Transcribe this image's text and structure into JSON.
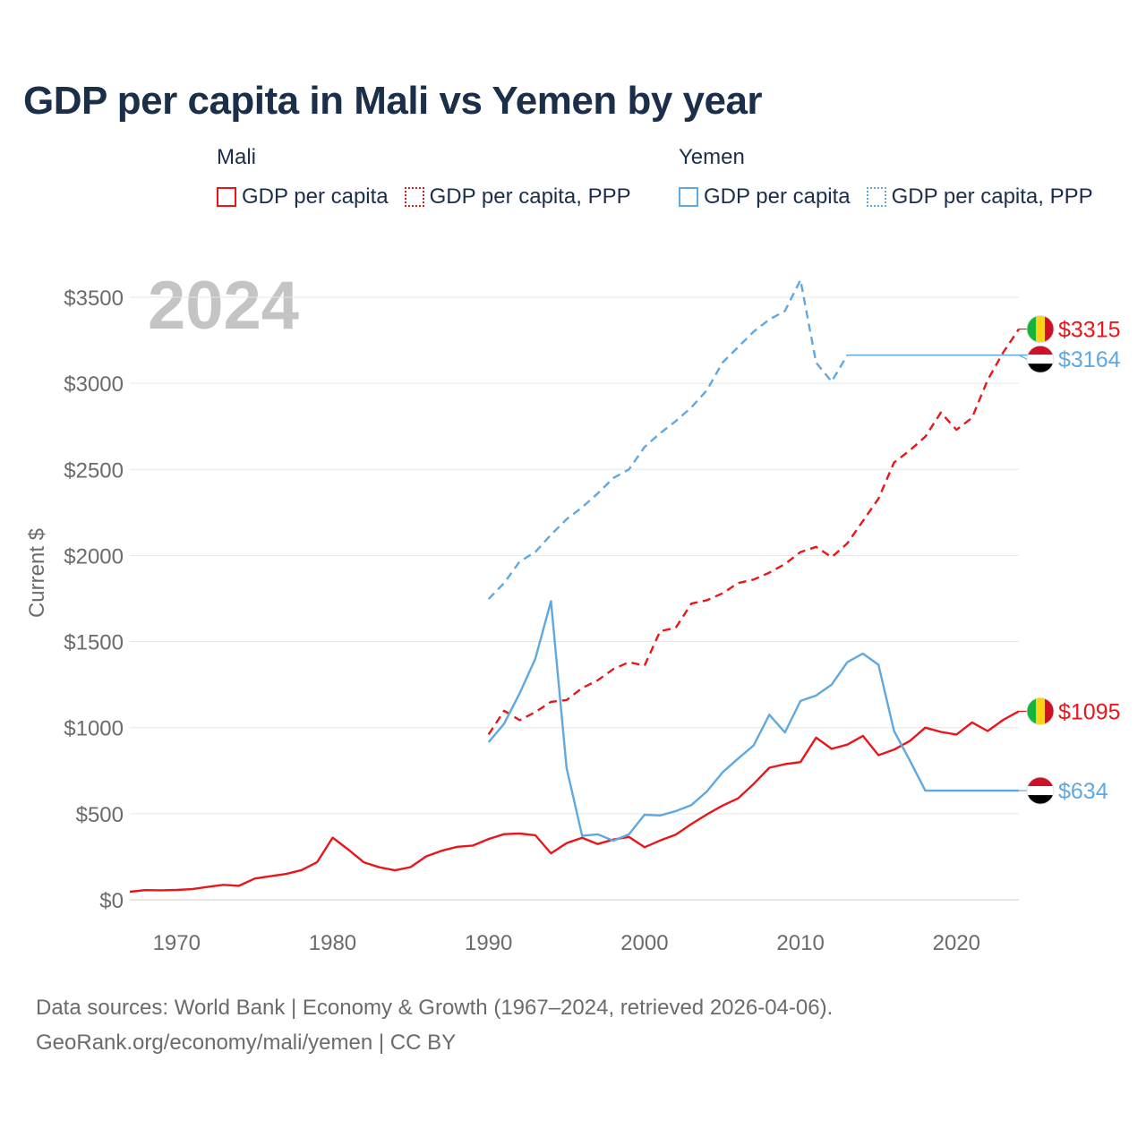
{
  "chart_data": {
    "type": "line",
    "title": "GDP per capita in Mali vs Yemen by year",
    "year_label": "2024",
    "ylabel": "Current $",
    "xlim": [
      1967,
      2024
    ],
    "ylim": [
      0,
      3600
    ],
    "x_ticks": [
      1970,
      1980,
      1990,
      2000,
      2010,
      2020
    ],
    "y_ticks": [
      0,
      500,
      1000,
      1500,
      2000,
      2500,
      3000,
      3500
    ],
    "y_tick_labels": [
      "$0",
      "$500",
      "$1000",
      "$1500",
      "$2000",
      "$2500",
      "$3000",
      "$3500"
    ],
    "legend": {
      "groups": [
        {
          "country": "Mali",
          "color": "#e8161b",
          "items": [
            {
              "label": "GDP per capita",
              "style": "solid"
            },
            {
              "label": "GDP per capita, PPP",
              "style": "dotted"
            }
          ]
        },
        {
          "country": "Yemen",
          "color": "#5fa8e0",
          "items": [
            {
              "label": "GDP per capita",
              "style": "solid"
            },
            {
              "label": "GDP per capita, PPP",
              "style": "dotted"
            }
          ]
        }
      ]
    },
    "series": [
      {
        "name": "Mali GDP per capita",
        "color": "#e8161b",
        "dash": false,
        "x": [
          1967,
          1968,
          1969,
          1970,
          1971,
          1972,
          1973,
          1974,
          1975,
          1976,
          1977,
          1978,
          1979,
          1980,
          1981,
          1982,
          1983,
          1984,
          1985,
          1986,
          1987,
          1988,
          1989,
          1990,
          1991,
          1992,
          1993,
          1994,
          1995,
          1996,
          1997,
          1998,
          1999,
          2000,
          2001,
          2002,
          2003,
          2004,
          2005,
          2006,
          2007,
          2008,
          2009,
          2010,
          2011,
          2012,
          2013,
          2014,
          2015,
          2016,
          2017,
          2018,
          2019,
          2020,
          2021,
          2022,
          2023,
          2024
        ],
        "values": [
          47,
          56,
          55,
          57,
          62,
          75,
          87,
          81,
          123,
          137,
          150,
          172,
          218,
          361,
          292,
          218,
          189,
          171,
          190,
          252,
          285,
          308,
          315,
          353,
          381,
          385,
          375,
          270,
          329,
          360,
          324,
          350,
          365,
          305,
          344,
          378,
          440,
          496,
          547,
          589,
          673,
          767,
          788,
          800,
          942,
          877,
          901,
          952,
          840,
          872,
          922,
          1000,
          975,
          960,
          1030,
          980,
          1045,
          1095
        ]
      },
      {
        "name": "Mali GDP per capita, PPP",
        "color": "#e8161b",
        "dash": true,
        "x": [
          1990,
          1991,
          1992,
          1993,
          1994,
          1995,
          1996,
          1997,
          1998,
          1999,
          2000,
          2001,
          2002,
          2003,
          2004,
          2005,
          2006,
          2007,
          2008,
          2009,
          2010,
          2011,
          2012,
          2013,
          2014,
          2015,
          2016,
          2017,
          2018,
          2019,
          2020,
          2021,
          2022,
          2023,
          2024
        ],
        "values": [
          960,
          1098,
          1043,
          1090,
          1150,
          1160,
          1230,
          1275,
          1340,
          1380,
          1360,
          1560,
          1580,
          1720,
          1740,
          1780,
          1840,
          1860,
          1900,
          1950,
          2020,
          2050,
          1990,
          2070,
          2200,
          2330,
          2540,
          2610,
          2690,
          2830,
          2730,
          2800,
          3020,
          3180,
          3315
        ]
      },
      {
        "name": "Yemen GDP per capita",
        "color": "#5fa8e0",
        "dash": false,
        "x": [
          1990,
          1991,
          1992,
          1993,
          1994,
          1995,
          1996,
          1997,
          1998,
          1999,
          2000,
          2001,
          2002,
          2003,
          2004,
          2005,
          2006,
          2007,
          2008,
          2009,
          2010,
          2011,
          2012,
          2013,
          2014,
          2015,
          2016,
          2017,
          2018,
          2024
        ],
        "values": [
          915,
          1023,
          1200,
          1400,
          1735,
          767,
          372,
          380,
          343,
          380,
          494,
          490,
          515,
          550,
          630,
          740,
          820,
          897,
          1075,
          972,
          1155,
          1186,
          1250,
          1380,
          1430,
          1365,
          980,
          810,
          634,
          634
        ]
      },
      {
        "name": "Yemen GDP per capita, PPP",
        "color": "#5fa8e0",
        "dash": true,
        "x": [
          1990,
          1991,
          1992,
          1993,
          1994,
          1995,
          1996,
          1997,
          1998,
          1999,
          2000,
          2001,
          2002,
          2003,
          2004,
          2005,
          2006,
          2007,
          2008,
          2009,
          2010,
          2011,
          2012,
          2013
        ],
        "values": [
          1747,
          1840,
          1965,
          2020,
          2120,
          2210,
          2280,
          2360,
          2450,
          2500,
          2630,
          2710,
          2780,
          2860,
          2960,
          3120,
          3210,
          3300,
          3370,
          3420,
          3600,
          3120,
          3010,
          3164
        ]
      },
      {
        "name": "Yemen GDP per capita, PPP (held)",
        "color": "#5fa8e0",
        "dash": false,
        "thin": true,
        "x": [
          2013,
          2025.5
        ],
        "values": [
          3164,
          3164
        ]
      }
    ],
    "end_labels": [
      {
        "text": "$3315",
        "value": 3315,
        "color": "#e8161b",
        "flag": "mali",
        "label_y": 3315
      },
      {
        "text": "$3164",
        "value": 3164,
        "color": "#5fa8e0",
        "flag": "yemen",
        "label_y": 3140
      },
      {
        "text": "$1095",
        "value": 1095,
        "color": "#e8161b",
        "flag": "mali",
        "label_y": 1095
      },
      {
        "text": "$634",
        "value": 634,
        "color": "#5fa8e0",
        "flag": "yemen",
        "label_y": 634
      }
    ]
  },
  "footer": {
    "line1": "Data sources: World Bank | Economy & Growth (1967–2024, retrieved 2026-04-06).",
    "line2": "GeoRank.org/economy/mali/yemen | CC BY"
  }
}
